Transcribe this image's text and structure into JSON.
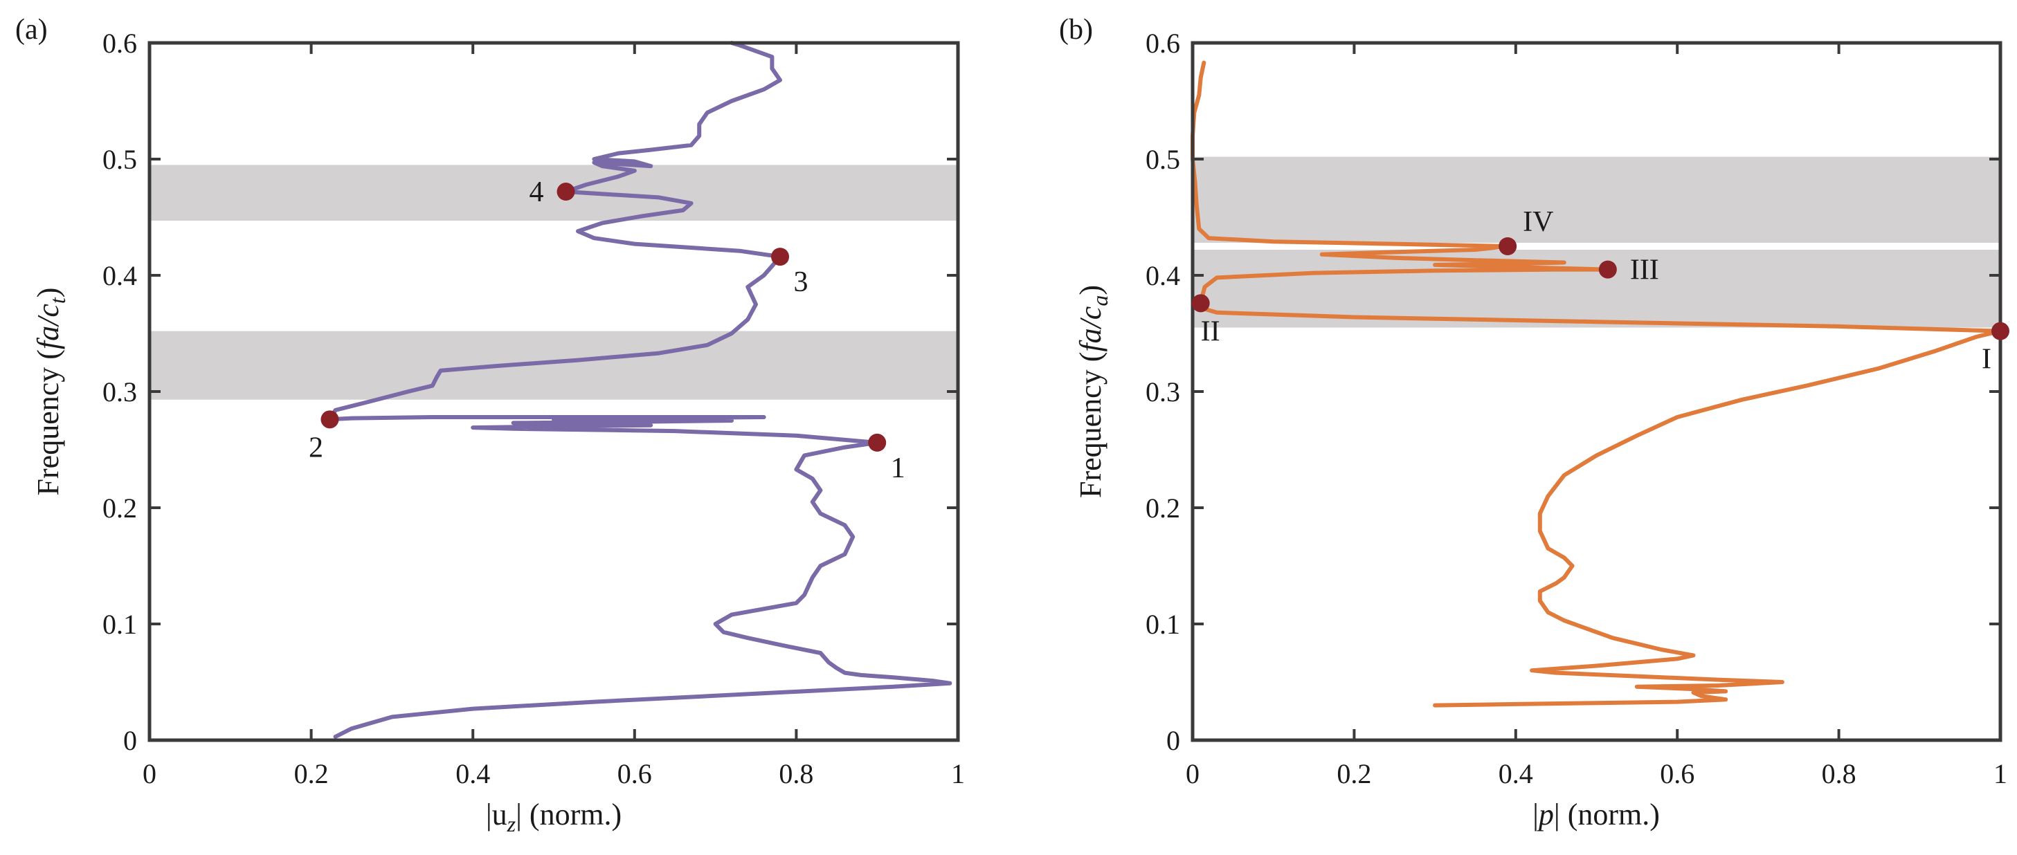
{
  "chart_data": [
    {
      "panel": "(a)",
      "type": "line",
      "xlabel_pre": "|u",
      "xlabel_sub": "z",
      "xlabel_post": "| (norm.)",
      "ylabel_pre": "Frequency (",
      "ylabel_italic": "fa/c",
      "ylabel_sub": "t",
      "ylabel_post": ")",
      "xlim": [
        0,
        1
      ],
      "ylim": [
        0,
        0.6
      ],
      "xticks": [
        0,
        0.2,
        0.4,
        0.6,
        0.8,
        1
      ],
      "xtick_labels": [
        "0",
        "0.2",
        "0.4",
        "0.6",
        "0.8",
        "1"
      ],
      "yticks": [
        0,
        0.1,
        0.2,
        0.3,
        0.4,
        0.5,
        0.6
      ],
      "ytick_labels": [
        "0",
        "0.1",
        "0.2",
        "0.3",
        "0.4",
        "0.5",
        "0.6"
      ],
      "color": "#7b6aa8",
      "bands": [
        [
          0.293,
          0.352
        ],
        [
          0.447,
          0.495
        ]
      ],
      "band_color": "#d3d1d2",
      "series": [
        {
          "name": "|u_z|",
          "points": [
            [
              0.23,
              0.003
            ],
            [
              0.25,
              0.01
            ],
            [
              0.3,
              0.02
            ],
            [
              0.4,
              0.027
            ],
            [
              0.55,
              0.033
            ],
            [
              0.75,
              0.04
            ],
            [
              0.92,
              0.046
            ],
            [
              0.99,
              0.049
            ],
            [
              0.97,
              0.051
            ],
            [
              0.92,
              0.054
            ],
            [
              0.88,
              0.056
            ],
            [
              0.86,
              0.058
            ],
            [
              0.85,
              0.062
            ],
            [
              0.84,
              0.067
            ],
            [
              0.83,
              0.075
            ],
            [
              0.78,
              0.082
            ],
            [
              0.74,
              0.088
            ],
            [
              0.71,
              0.093
            ],
            [
              0.7,
              0.1
            ],
            [
              0.72,
              0.108
            ],
            [
              0.76,
              0.113
            ],
            [
              0.8,
              0.118
            ],
            [
              0.81,
              0.125
            ],
            [
              0.82,
              0.14
            ],
            [
              0.83,
              0.15
            ],
            [
              0.86,
              0.16
            ],
            [
              0.87,
              0.175
            ],
            [
              0.86,
              0.185
            ],
            [
              0.83,
              0.195
            ],
            [
              0.82,
              0.205
            ],
            [
              0.83,
              0.215
            ],
            [
              0.82,
              0.225
            ],
            [
              0.8,
              0.233
            ],
            [
              0.81,
              0.245
            ],
            [
              0.86,
              0.252
            ],
            [
              0.9,
              0.256
            ],
            [
              0.8,
              0.262
            ],
            [
              0.65,
              0.266
            ],
            [
              0.45,
              0.268
            ],
            [
              0.4,
              0.269
            ],
            [
              0.5,
              0.27
            ],
            [
              0.62,
              0.271
            ],
            [
              0.55,
              0.272
            ],
            [
              0.45,
              0.273
            ],
            [
              0.6,
              0.274
            ],
            [
              0.72,
              0.275
            ],
            [
              0.62,
              0.275
            ],
            [
              0.5,
              0.276
            ],
            [
              0.6,
              0.277
            ],
            [
              0.76,
              0.278
            ],
            [
              0.62,
              0.278
            ],
            [
              0.5,
              0.278
            ],
            [
              0.35,
              0.278
            ],
            [
              0.25,
              0.277
            ],
            [
              0.223,
              0.276
            ],
            [
              0.23,
              0.284
            ],
            [
              0.27,
              0.291
            ],
            [
              0.32,
              0.3
            ],
            [
              0.35,
              0.305
            ],
            [
              0.355,
              0.312
            ],
            [
              0.36,
              0.318
            ],
            [
              0.43,
              0.322
            ],
            [
              0.53,
              0.327
            ],
            [
              0.63,
              0.333
            ],
            [
              0.69,
              0.34
            ],
            [
              0.72,
              0.35
            ],
            [
              0.74,
              0.362
            ],
            [
              0.75,
              0.375
            ],
            [
              0.74,
              0.39
            ],
            [
              0.76,
              0.4
            ],
            [
              0.77,
              0.408
            ],
            [
              0.78,
              0.416
            ],
            [
              0.73,
              0.421
            ],
            [
              0.6,
              0.427
            ],
            [
              0.55,
              0.432
            ],
            [
              0.53,
              0.438
            ],
            [
              0.56,
              0.445
            ],
            [
              0.61,
              0.451
            ],
            [
              0.66,
              0.456
            ],
            [
              0.67,
              0.462
            ],
            [
              0.63,
              0.467
            ],
            [
              0.56,
              0.47
            ],
            [
              0.515,
              0.472
            ],
            [
              0.54,
              0.478
            ],
            [
              0.58,
              0.485
            ],
            [
              0.6,
              0.49
            ],
            [
              0.56,
              0.494
            ],
            [
              0.55,
              0.497
            ],
            [
              0.62,
              0.494
            ],
            [
              0.6,
              0.498
            ],
            [
              0.55,
              0.5
            ],
            [
              0.58,
              0.505
            ],
            [
              0.62,
              0.508
            ],
            [
              0.67,
              0.512
            ],
            [
              0.68,
              0.52
            ],
            [
              0.68,
              0.53
            ],
            [
              0.69,
              0.54
            ],
            [
              0.72,
              0.55
            ],
            [
              0.76,
              0.56
            ],
            [
              0.78,
              0.568
            ],
            [
              0.77,
              0.578
            ],
            [
              0.77,
              0.588
            ],
            [
              0.73,
              0.598
            ],
            [
              0.72,
              0.6
            ]
          ]
        }
      ],
      "markers": [
        {
          "label": "1",
          "x": 0.9,
          "y": 0.256,
          "pos": "below-right"
        },
        {
          "label": "2",
          "x": 0.223,
          "y": 0.276,
          "pos": "below-left"
        },
        {
          "label": "3",
          "x": 0.78,
          "y": 0.416,
          "pos": "below-right"
        },
        {
          "label": "4",
          "x": 0.515,
          "y": 0.472,
          "pos": "left"
        }
      ],
      "marker_color": "#8b2227"
    },
    {
      "panel": "(b)",
      "type": "line",
      "xlabel_pre": "|",
      "xlabel_italic": "p",
      "xlabel_post": "| (norm.)",
      "ylabel_pre": "Frequency (",
      "ylabel_italic": "fa/c",
      "ylabel_sub": "a",
      "ylabel_post": ")",
      "xlim": [
        0,
        1
      ],
      "ylim": [
        0,
        0.6
      ],
      "xticks": [
        0,
        0.2,
        0.4,
        0.6,
        0.8,
        1
      ],
      "xtick_labels": [
        "0",
        "0.2",
        "0.4",
        "0.6",
        "0.8",
        "1"
      ],
      "yticks": [
        0,
        0.1,
        0.2,
        0.3,
        0.4,
        0.5,
        0.6
      ],
      "ytick_labels": [
        "0",
        "0.1",
        "0.2",
        "0.3",
        "0.4",
        "0.5",
        "0.6"
      ],
      "color": "#e07b3c",
      "bands": [
        [
          0.355,
          0.422
        ],
        [
          0.428,
          0.502
        ]
      ],
      "band_color": "#d3d1d2",
      "series": [
        {
          "name": "|p|",
          "points": [
            [
              0.3,
              0.03
            ],
            [
              0.4,
              0.031
            ],
            [
              0.5,
              0.032
            ],
            [
              0.6,
              0.033
            ],
            [
              0.66,
              0.035
            ],
            [
              0.63,
              0.038
            ],
            [
              0.62,
              0.041
            ],
            [
              0.66,
              0.042
            ],
            [
              0.62,
              0.044
            ],
            [
              0.55,
              0.046
            ],
            [
              0.65,
              0.047
            ],
            [
              0.73,
              0.05
            ],
            [
              0.65,
              0.052
            ],
            [
              0.55,
              0.055
            ],
            [
              0.45,
              0.058
            ],
            [
              0.42,
              0.06
            ],
            [
              0.5,
              0.064
            ],
            [
              0.6,
              0.07
            ],
            [
              0.62,
              0.073
            ],
            [
              0.58,
              0.078
            ],
            [
              0.55,
              0.083
            ],
            [
              0.52,
              0.088
            ],
            [
              0.5,
              0.093
            ],
            [
              0.48,
              0.098
            ],
            [
              0.46,
              0.103
            ],
            [
              0.44,
              0.11
            ],
            [
              0.43,
              0.12
            ],
            [
              0.43,
              0.128
            ],
            [
              0.45,
              0.135
            ],
            [
              0.46,
              0.14
            ],
            [
              0.47,
              0.15
            ],
            [
              0.46,
              0.157
            ],
            [
              0.44,
              0.165
            ],
            [
              0.43,
              0.18
            ],
            [
              0.43,
              0.195
            ],
            [
              0.44,
              0.21
            ],
            [
              0.46,
              0.228
            ],
            [
              0.5,
              0.245
            ],
            [
              0.55,
              0.262
            ],
            [
              0.6,
              0.278
            ],
            [
              0.68,
              0.293
            ],
            [
              0.76,
              0.305
            ],
            [
              0.85,
              0.32
            ],
            [
              0.92,
              0.335
            ],
            [
              0.97,
              0.347
            ],
            [
              1.0,
              0.352
            ],
            [
              0.8,
              0.356
            ],
            [
              0.5,
              0.36
            ],
            [
              0.2,
              0.364
            ],
            [
              0.03,
              0.368
            ],
            [
              0.01,
              0.372
            ],
            [
              0.01,
              0.376
            ],
            [
              0.012,
              0.382
            ],
            [
              0.015,
              0.39
            ],
            [
              0.03,
              0.398
            ],
            [
              0.15,
              0.402
            ],
            [
              0.3,
              0.404
            ],
            [
              0.45,
              0.405
            ],
            [
              0.514,
              0.405
            ],
            [
              0.4,
              0.407
            ],
            [
              0.3,
              0.409
            ],
            [
              0.4,
              0.41
            ],
            [
              0.46,
              0.411
            ],
            [
              0.35,
              0.413
            ],
            [
              0.25,
              0.415
            ],
            [
              0.16,
              0.418
            ],
            [
              0.25,
              0.42
            ],
            [
              0.35,
              0.422
            ],
            [
              0.39,
              0.425
            ],
            [
              0.25,
              0.427
            ],
            [
              0.1,
              0.429
            ],
            [
              0.02,
              0.432
            ],
            [
              0.008,
              0.44
            ],
            [
              0.005,
              0.46
            ],
            [
              0.003,
              0.48
            ],
            [
              0.0,
              0.5
            ],
            [
              0.0,
              0.52
            ],
            [
              0.002,
              0.54
            ],
            [
              0.008,
              0.555
            ],
            [
              0.01,
              0.57
            ],
            [
              0.014,
              0.583
            ]
          ]
        }
      ],
      "markers": [
        {
          "label": "I",
          "x": 1.0,
          "y": 0.352,
          "pos": "below-left"
        },
        {
          "label": "II",
          "x": 0.01,
          "y": 0.376,
          "pos": "below"
        },
        {
          "label": "III",
          "x": 0.514,
          "y": 0.405,
          "pos": "right"
        },
        {
          "label": "IV",
          "x": 0.39,
          "y": 0.425,
          "pos": "above-right"
        }
      ],
      "marker_color": "#8b2227"
    }
  ]
}
